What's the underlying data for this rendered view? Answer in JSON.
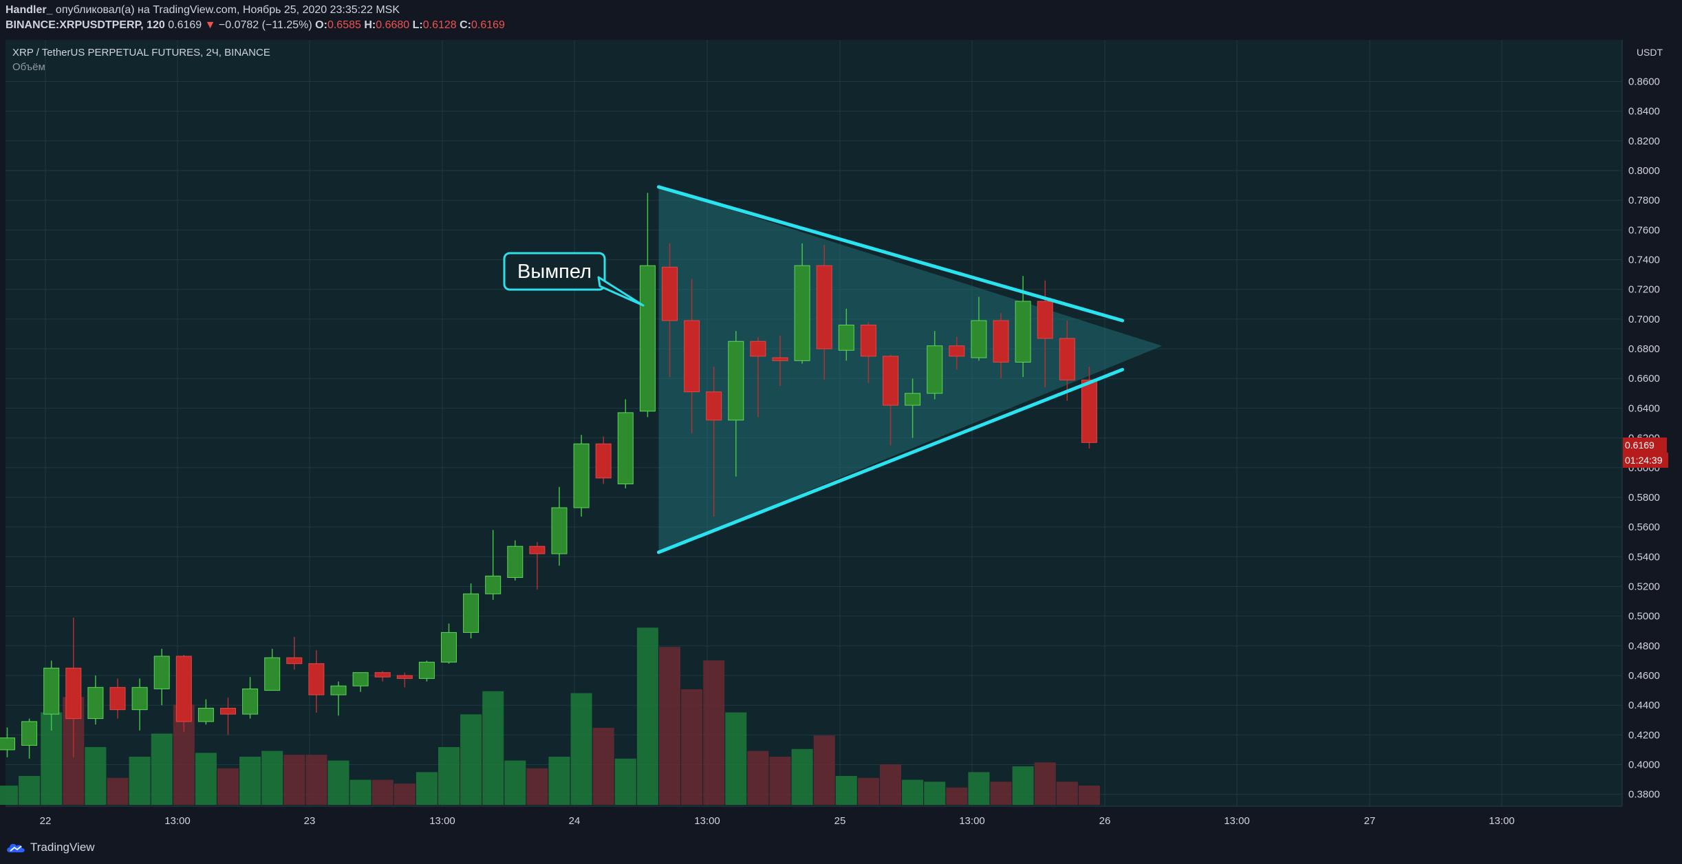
{
  "header": {
    "author": "Handler_",
    "published_text": "опубликовал(а) на TradingView.com, Ноябрь 25, 2020 23:35:22 MSK",
    "symbol": "BINANCE:XRPUSDTPERP, 120",
    "last": "0.6169",
    "change": "−0.0782 (−11.25%)",
    "o_label": "O:",
    "o": "0.6585",
    "h_label": "H:",
    "h": "0.6680",
    "l_label": "L:",
    "l": "0.6128",
    "c_label": "C:",
    "c": "0.6169"
  },
  "chart_title": "XRP / TetherUS PERPETUAL FUTURES, 2Ч, BINANCE",
  "volume_label": "Объём",
  "currency": "USDT",
  "price_badge": "0.6169",
  "timer_badge": "01:24:39",
  "annotation": "Вымпел",
  "branding": "TradingView",
  "colors": {
    "up": "#26a69a",
    "up_body": "#2e8b2e",
    "down": "#c62828",
    "line": "#29e3f0",
    "pennant_fill": "#1f6e73"
  },
  "chart_data": {
    "type": "candlestick",
    "interval": "2h",
    "y_ticks": [
      "0.8600",
      "0.8400",
      "0.8200",
      "0.8000",
      "0.7800",
      "0.7600",
      "0.7400",
      "0.7200",
      "0.7000",
      "0.6800",
      "0.6600",
      "0.6400",
      "0.6200",
      "0.6000",
      "0.5800",
      "0.5600",
      "0.5400",
      "0.5200",
      "0.5000",
      "0.4800",
      "0.4600",
      "0.4400",
      "0.4200",
      "0.4000",
      "0.3800"
    ],
    "x_ticks": [
      "22",
      "13:00",
      "23",
      "13:00",
      "24",
      "13:00",
      "25",
      "13:00",
      "26",
      "13:00",
      "27",
      "13:00"
    ],
    "ylim": [
      0.372,
      0.888
    ],
    "candles": [
      {
        "o": 0.41,
        "h": 0.425,
        "l": 0.405,
        "c": 0.418
      },
      {
        "o": 0.413,
        "h": 0.431,
        "l": 0.404,
        "c": 0.429
      },
      {
        "o": 0.434,
        "h": 0.47,
        "l": 0.423,
        "c": 0.465
      },
      {
        "o": 0.465,
        "h": 0.499,
        "l": 0.405,
        "c": 0.431
      },
      {
        "o": 0.431,
        "h": 0.46,
        "l": 0.427,
        "c": 0.452
      },
      {
        "o": 0.452,
        "h": 0.458,
        "l": 0.431,
        "c": 0.437
      },
      {
        "o": 0.437,
        "h": 0.458,
        "l": 0.423,
        "c": 0.452
      },
      {
        "o": 0.451,
        "h": 0.478,
        "l": 0.44,
        "c": 0.473
      },
      {
        "o": 0.473,
        "h": 0.474,
        "l": 0.422,
        "c": 0.429
      },
      {
        "o": 0.429,
        "h": 0.444,
        "l": 0.427,
        "c": 0.438
      },
      {
        "o": 0.438,
        "h": 0.445,
        "l": 0.42,
        "c": 0.434
      },
      {
        "o": 0.434,
        "h": 0.459,
        "l": 0.431,
        "c": 0.451
      },
      {
        "o": 0.45,
        "h": 0.478,
        "l": 0.45,
        "c": 0.472
      },
      {
        "o": 0.472,
        "h": 0.486,
        "l": 0.464,
        "c": 0.468
      },
      {
        "o": 0.468,
        "h": 0.477,
        "l": 0.435,
        "c": 0.447
      },
      {
        "o": 0.447,
        "h": 0.456,
        "l": 0.433,
        "c": 0.453
      },
      {
        "o": 0.453,
        "h": 0.462,
        "l": 0.449,
        "c": 0.462
      },
      {
        "o": 0.462,
        "h": 0.463,
        "l": 0.456,
        "c": 0.459
      },
      {
        "o": 0.46,
        "h": 0.462,
        "l": 0.452,
        "c": 0.458
      },
      {
        "o": 0.458,
        "h": 0.47,
        "l": 0.456,
        "c": 0.469
      },
      {
        "o": 0.469,
        "h": 0.495,
        "l": 0.468,
        "c": 0.489
      },
      {
        "o": 0.489,
        "h": 0.522,
        "l": 0.485,
        "c": 0.515
      },
      {
        "o": 0.515,
        "h": 0.558,
        "l": 0.511,
        "c": 0.527
      },
      {
        "o": 0.526,
        "h": 0.551,
        "l": 0.524,
        "c": 0.547
      },
      {
        "o": 0.547,
        "h": 0.55,
        "l": 0.518,
        "c": 0.542
      },
      {
        "o": 0.542,
        "h": 0.587,
        "l": 0.534,
        "c": 0.573
      },
      {
        "o": 0.573,
        "h": 0.622,
        "l": 0.567,
        "c": 0.616
      },
      {
        "o": 0.616,
        "h": 0.621,
        "l": 0.589,
        "c": 0.593
      },
      {
        "o": 0.589,
        "h": 0.646,
        "l": 0.586,
        "c": 0.637
      },
      {
        "o": 0.638,
        "h": 0.785,
        "l": 0.634,
        "c": 0.736
      },
      {
        "o": 0.735,
        "h": 0.751,
        "l": 0.661,
        "c": 0.699
      },
      {
        "o": 0.699,
        "h": 0.727,
        "l": 0.623,
        "c": 0.651
      },
      {
        "o": 0.651,
        "h": 0.668,
        "l": 0.567,
        "c": 0.632
      },
      {
        "o": 0.632,
        "h": 0.692,
        "l": 0.594,
        "c": 0.685
      },
      {
        "o": 0.685,
        "h": 0.688,
        "l": 0.634,
        "c": 0.675
      },
      {
        "o": 0.674,
        "h": 0.689,
        "l": 0.655,
        "c": 0.672
      },
      {
        "o": 0.672,
        "h": 0.751,
        "l": 0.67,
        "c": 0.736
      },
      {
        "o": 0.736,
        "h": 0.75,
        "l": 0.659,
        "c": 0.68
      },
      {
        "o": 0.679,
        "h": 0.707,
        "l": 0.672,
        "c": 0.696
      },
      {
        "o": 0.696,
        "h": 0.698,
        "l": 0.657,
        "c": 0.675
      },
      {
        "o": 0.675,
        "h": 0.676,
        "l": 0.615,
        "c": 0.642
      },
      {
        "o": 0.642,
        "h": 0.66,
        "l": 0.62,
        "c": 0.65
      },
      {
        "o": 0.65,
        "h": 0.692,
        "l": 0.646,
        "c": 0.682
      },
      {
        "o": 0.682,
        "h": 0.688,
        "l": 0.666,
        "c": 0.675
      },
      {
        "o": 0.674,
        "h": 0.715,
        "l": 0.672,
        "c": 0.699
      },
      {
        "o": 0.699,
        "h": 0.704,
        "l": 0.66,
        "c": 0.671
      },
      {
        "o": 0.671,
        "h": 0.729,
        "l": 0.661,
        "c": 0.712
      },
      {
        "o": 0.712,
        "h": 0.726,
        "l": 0.654,
        "c": 0.687
      },
      {
        "o": 0.687,
        "h": 0.699,
        "l": 0.645,
        "c": 0.659
      },
      {
        "o": 0.659,
        "h": 0.668,
        "l": 0.6128,
        "c": 0.6169
      }
    ],
    "volume": [
      0.1,
      0.15,
      0.48,
      0.56,
      0.3,
      0.14,
      0.25,
      0.37,
      0.52,
      0.27,
      0.19,
      0.25,
      0.28,
      0.26,
      0.26,
      0.23,
      0.13,
      0.13,
      0.11,
      0.17,
      0.3,
      0.47,
      0.59,
      0.23,
      0.19,
      0.25,
      0.58,
      0.4,
      0.24,
      0.92,
      0.82,
      0.6,
      0.75,
      0.48,
      0.28,
      0.25,
      0.29,
      0.36,
      0.15,
      0.14,
      0.21,
      0.13,
      0.12,
      0.09,
      0.17,
      0.12,
      0.2,
      0.22,
      0.12,
      0.1
    ],
    "pennant": {
      "upper_line": [
        [
          29.5,
          0.789
        ],
        [
          50.5,
          0.699
        ]
      ],
      "lower_line": [
        [
          29.5,
          0.543
        ],
        [
          50.5,
          0.666
        ]
      ],
      "apex": [
        52.3,
        0.682
      ]
    }
  }
}
